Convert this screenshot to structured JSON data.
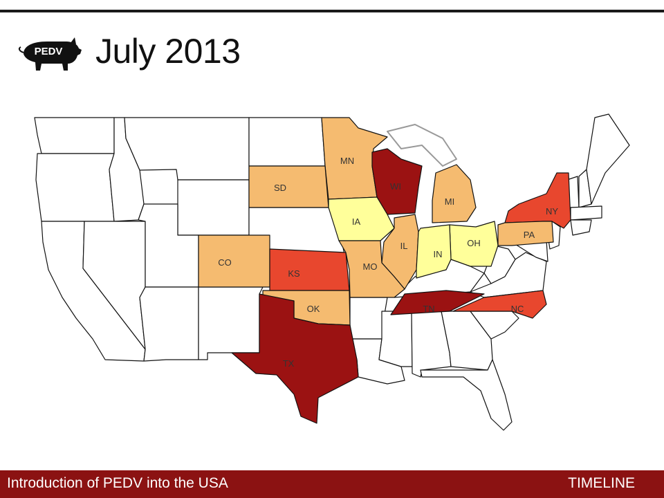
{
  "header": {
    "logo_text": "PEDV",
    "title": "July 2013"
  },
  "map": {
    "states": [
      {
        "code": "MN",
        "color": "#f5bb70"
      },
      {
        "code": "SD",
        "color": "#f5bb70"
      },
      {
        "code": "WI",
        "color": "#9b1212"
      },
      {
        "code": "MI",
        "color": "#f5bb70"
      },
      {
        "code": "IA",
        "color": "#ffff9a"
      },
      {
        "code": "NY",
        "color": "#e8472e"
      },
      {
        "code": "PA",
        "color": "#f5bb70"
      },
      {
        "code": "IL",
        "color": "#f5bb70"
      },
      {
        "code": "OH",
        "color": "#ffff9a"
      },
      {
        "code": "IN",
        "color": "#ffff9a"
      },
      {
        "code": "CO",
        "color": "#f5bb70"
      },
      {
        "code": "KS",
        "color": "#e8472e"
      },
      {
        "code": "MO",
        "color": "#f5bb70"
      },
      {
        "code": "OK",
        "color": "#f5bb70"
      },
      {
        "code": "TN",
        "color": "#9b1212"
      },
      {
        "code": "NC",
        "color": "#e8472e"
      },
      {
        "code": "TX",
        "color": "#9b1212"
      }
    ]
  },
  "footer": {
    "left": "Introduction of PEDV into the USA",
    "right": "TIMELINE"
  }
}
